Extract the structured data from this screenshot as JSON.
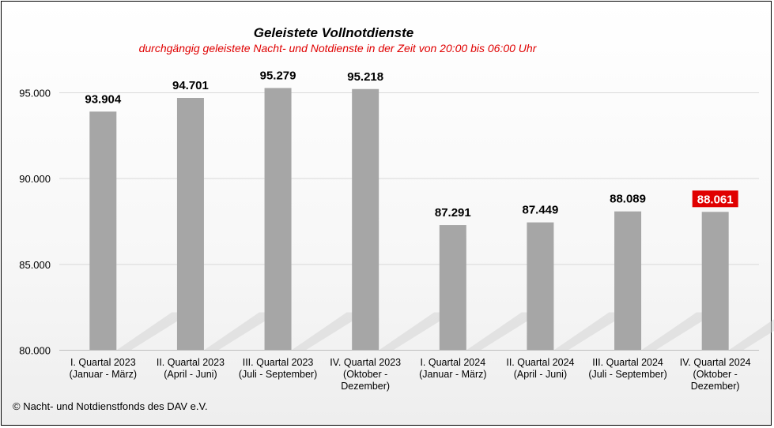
{
  "chart_data": {
    "type": "bar",
    "title": "Geleistete  Vollnotdienste",
    "subtitle": "durchgängig geleistete Nacht- und Notdienste in der Zeit von 20:00 bis 06:00 Uhr",
    "categories": [
      [
        "I. Quartal 2023",
        "(Januar - März)"
      ],
      [
        "II. Quartal 2023",
        "(April - Juni)"
      ],
      [
        "III. Quartal 2023",
        "(Juli - September)"
      ],
      [
        "IV. Quartal 2023",
        "(Oktober -",
        "Dezember)"
      ],
      [
        "I. Quartal 2024",
        "(Januar - März)"
      ],
      [
        "II. Quartal 2024",
        "(April - Juni)"
      ],
      [
        "III. Quartal 2024",
        "(Juli - September)"
      ],
      [
        "IV. Quartal 2024",
        "(Oktober -",
        "Dezember)"
      ]
    ],
    "values": [
      93904,
      94701,
      95279,
      95218,
      87291,
      87449,
      88089,
      88061
    ],
    "data_labels": [
      "93.904",
      "94.701",
      "95.279",
      "95.218",
      "87.291",
      "87.449",
      "88.089",
      "88.061"
    ],
    "highlight_index": 7,
    "ylim": [
      80000,
      96000
    ],
    "yticks": [
      80000,
      85000,
      90000,
      95000
    ],
    "ytick_labels": [
      "80.000",
      "85.000",
      "90.000",
      "95.000"
    ],
    "grid": true,
    "colors": {
      "bar": "#a6a6a6",
      "highlight_label_bg": "#e00000",
      "subtitle": "#e00000",
      "grid": "#d9d9d9"
    }
  },
  "footer": "© Nacht- und Notdienstfonds  des DAV e.V."
}
